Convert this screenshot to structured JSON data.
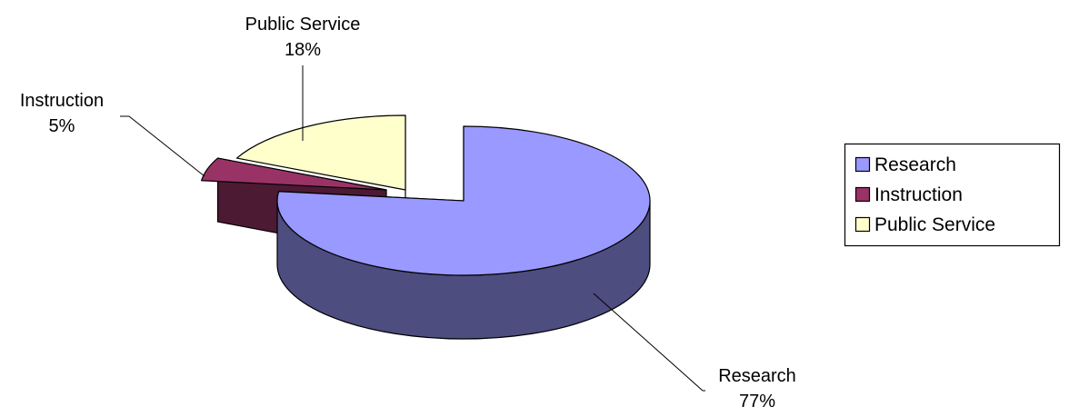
{
  "chart_data": {
    "type": "pie",
    "style": "3d-exploded",
    "title": "",
    "slices": [
      {
        "name": "Research",
        "percent": 77,
        "label": "77%",
        "color": "#9999ff",
        "side_color": "#4d4d80"
      },
      {
        "name": "Instruction",
        "percent": 5,
        "label": "5%",
        "color": "#993366",
        "side_color": "#4d1a33"
      },
      {
        "name": "Public Service",
        "percent": 18,
        "label": "18%",
        "color": "#ffffcc",
        "side_color": "#808066"
      }
    ],
    "legend": {
      "placement": "right",
      "entries": [
        "Research",
        "Instruction",
        "Public Service"
      ]
    }
  }
}
